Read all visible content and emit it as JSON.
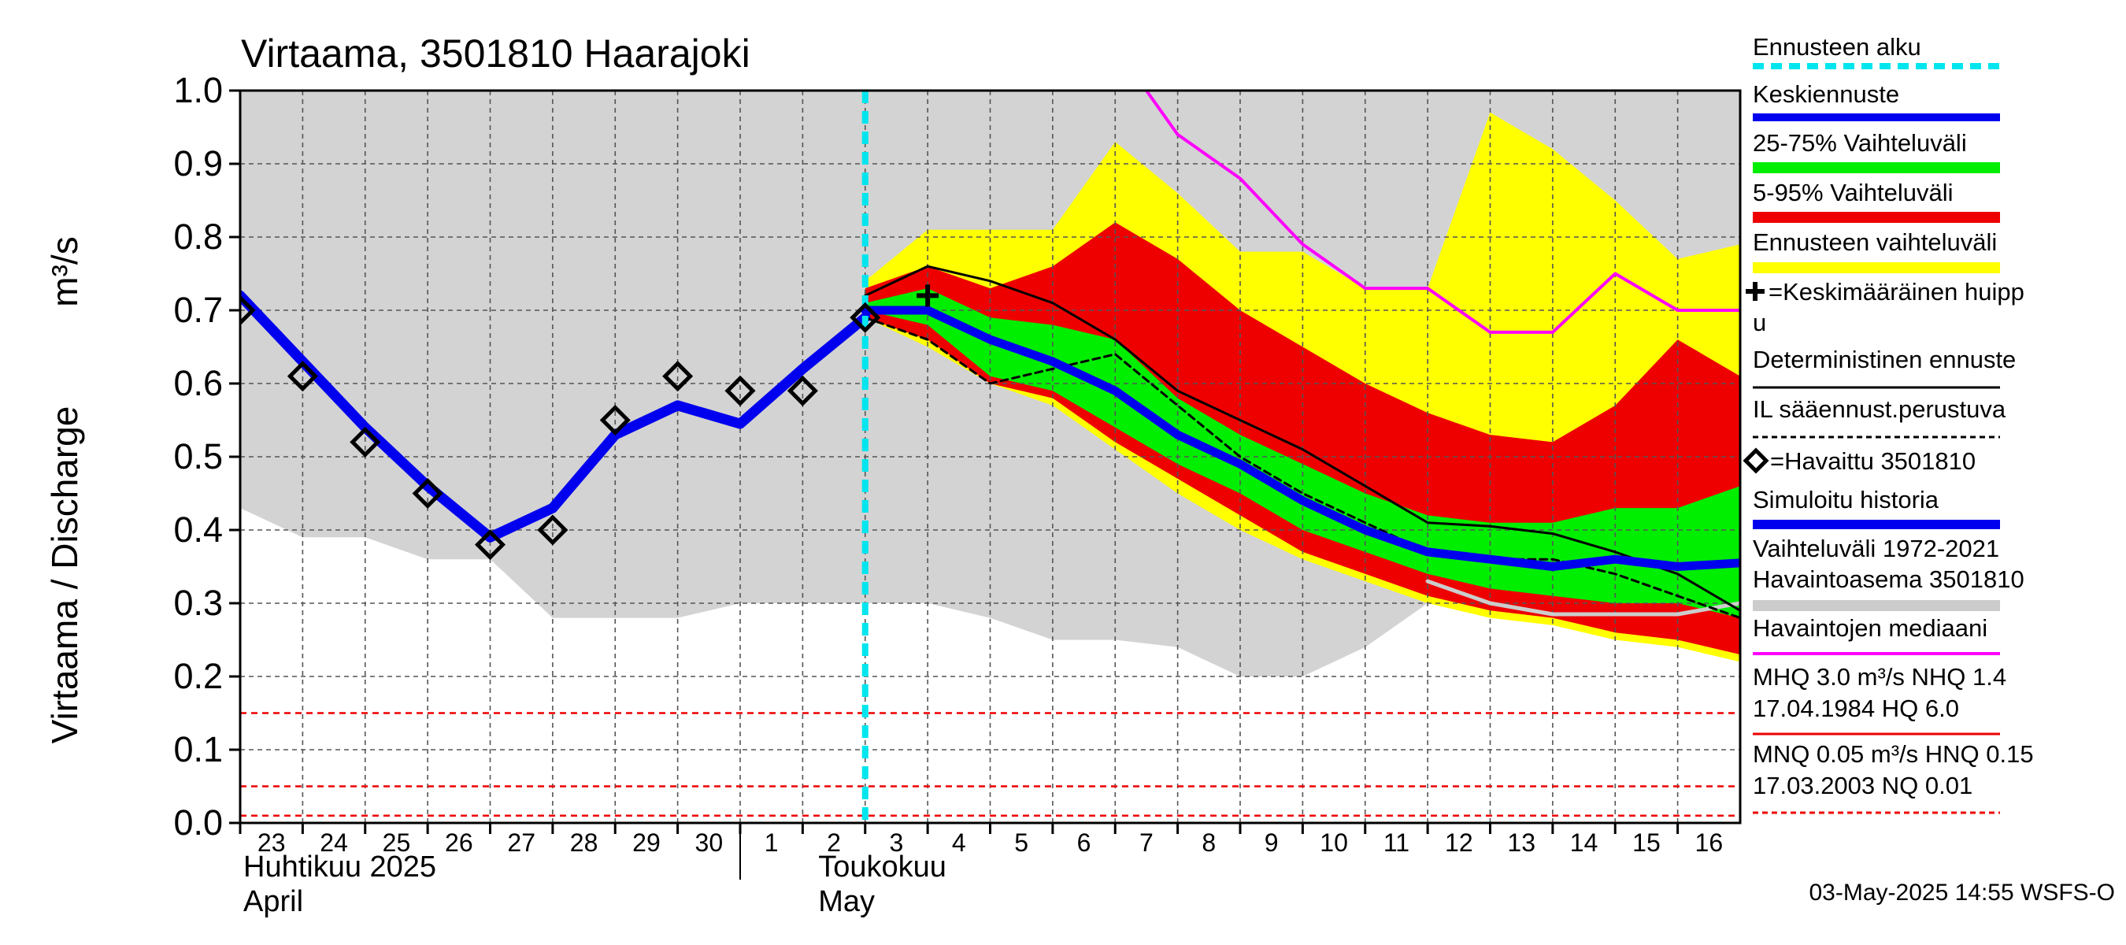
{
  "chart_data": {
    "type": "line",
    "title": "Virtaama, 3501810 Haarajoki",
    "ylabel": "Virtaama / Discharge",
    "yunit": "m³/s",
    "ylim": [
      0.0,
      1.0
    ],
    "yticks": [
      "0.0",
      "0.1",
      "0.2",
      "0.3",
      "0.4",
      "0.5",
      "0.6",
      "0.7",
      "0.8",
      "0.9",
      "1.0"
    ],
    "xlim": [
      0,
      24
    ],
    "x_tick_labels": [
      "23",
      "24",
      "25",
      "26",
      "27",
      "28",
      "29",
      "30",
      "1",
      "2",
      "3",
      "4",
      "5",
      "6",
      "7",
      "8",
      "9",
      "10",
      "11",
      "12",
      "13",
      "14",
      "15",
      "16"
    ],
    "month_labels": [
      {
        "x": 0,
        "fi": "Huhtikuu  2025",
        "en": "April"
      },
      {
        "x": 9.2,
        "fi": "Toukokuu",
        "en": "May"
      }
    ],
    "month_separator_x": 8,
    "forecast_start_x": 10,
    "grid": true,
    "legend_position": "right",
    "historical_band": {
      "name": "Vaihteluväli 1972-2021 Havaintoasema 3501810",
      "x": [
        0,
        1,
        2,
        3,
        4,
        5,
        6,
        7,
        8,
        9,
        10,
        11,
        12,
        13,
        14,
        15,
        16,
        17,
        18,
        19,
        20,
        21,
        22,
        23,
        24
      ],
      "high": [
        1.0,
        1.0,
        1.0,
        1.0,
        1.0,
        1.0,
        1.0,
        1.0,
        1.0,
        1.0,
        1.0,
        1.0,
        1.0,
        1.0,
        1.0,
        1.0,
        1.0,
        1.0,
        1.0,
        1.0,
        1.0,
        1.0,
        1.0,
        1.0,
        1.0
      ],
      "low": [
        0.43,
        0.39,
        0.39,
        0.36,
        0.36,
        0.28,
        0.28,
        0.28,
        0.3,
        0.3,
        0.3,
        0.3,
        0.28,
        0.25,
        0.25,
        0.24,
        0.2,
        0.2,
        0.24,
        0.3,
        0.3,
        0.3,
        0.3,
        0.3,
        0.3
      ]
    },
    "forecast_x": [
      10,
      11,
      12,
      13,
      14,
      15,
      16,
      17,
      18,
      19,
      20,
      21,
      22,
      23,
      24
    ],
    "band_ennuste": {
      "name": "Ennusteen vaihteluväli",
      "high": [
        0.74,
        0.81,
        0.81,
        0.81,
        0.93,
        0.86,
        0.78,
        0.78,
        0.73,
        0.73,
        0.97,
        0.92,
        0.85,
        0.77,
        0.79
      ],
      "low": [
        0.69,
        0.65,
        0.6,
        0.57,
        0.51,
        0.45,
        0.4,
        0.36,
        0.33,
        0.3,
        0.28,
        0.27,
        0.25,
        0.24,
        0.22
      ]
    },
    "band_5_95": {
      "name": "5-95% Vaihteluväli",
      "high": [
        0.73,
        0.76,
        0.73,
        0.76,
        0.82,
        0.77,
        0.7,
        0.65,
        0.6,
        0.56,
        0.53,
        0.52,
        0.57,
        0.66,
        0.61
      ],
      "low": [
        0.69,
        0.66,
        0.6,
        0.58,
        0.52,
        0.47,
        0.42,
        0.37,
        0.34,
        0.31,
        0.29,
        0.28,
        0.26,
        0.25,
        0.23
      ]
    },
    "band_25_75": {
      "name": "25-75% Vaihteluväli",
      "high": [
        0.71,
        0.73,
        0.69,
        0.68,
        0.66,
        0.58,
        0.53,
        0.49,
        0.45,
        0.42,
        0.41,
        0.41,
        0.43,
        0.43,
        0.46
      ],
      "low": [
        0.7,
        0.68,
        0.61,
        0.59,
        0.54,
        0.49,
        0.45,
        0.4,
        0.37,
        0.34,
        0.32,
        0.31,
        0.3,
        0.3,
        0.28
      ]
    },
    "series": [
      {
        "name": "Keskiennuste",
        "color": "#0000ee",
        "x": [
          10,
          11,
          12,
          13,
          14,
          15,
          16,
          17,
          18,
          19,
          20,
          21,
          22,
          23,
          24
        ],
        "values": [
          0.7,
          0.7,
          0.66,
          0.63,
          0.59,
          0.53,
          0.49,
          0.44,
          0.4,
          0.37,
          0.36,
          0.35,
          0.36,
          0.35,
          0.355
        ]
      },
      {
        "name": "Deterministinen ennuste",
        "color": "#000000",
        "x": [
          10,
          11,
          12,
          13,
          14,
          15,
          16,
          17,
          18,
          19,
          20,
          21,
          22,
          23,
          24
        ],
        "values": [
          0.72,
          0.76,
          0.74,
          0.71,
          0.66,
          0.59,
          0.55,
          0.51,
          0.46,
          0.41,
          0.405,
          0.395,
          0.37,
          0.34,
          0.29
        ]
      },
      {
        "name": "IL sääennust.perustuva",
        "color": "#000000",
        "x": [
          10,
          11,
          12,
          13,
          14,
          15,
          16,
          17,
          18,
          19,
          20,
          21,
          22,
          23,
          24
        ],
        "values": [
          0.69,
          0.66,
          0.6,
          0.62,
          0.64,
          0.57,
          0.5,
          0.45,
          0.41,
          0.37,
          0.36,
          0.36,
          0.34,
          0.31,
          0.28
        ]
      },
      {
        "name": "Simuloitu historia",
        "color": "#0000ee",
        "x": [
          0,
          1,
          2,
          3,
          4,
          5,
          6,
          7,
          8,
          9,
          10
        ],
        "values": [
          0.72,
          0.63,
          0.54,
          0.46,
          0.39,
          0.43,
          0.53,
          0.57,
          0.545,
          0.62,
          0.69
        ]
      },
      {
        "name": "Havaintojen mediaani",
        "color": "#ff00ff",
        "x": [
          14.5,
          15,
          16,
          17,
          18,
          19,
          20,
          21,
          22,
          23,
          24
        ],
        "values": [
          1.0,
          0.94,
          0.88,
          0.79,
          0.73,
          0.73,
          0.67,
          0.67,
          0.75,
          0.7,
          0.7
        ]
      },
      {
        "name": "Havaintojen mediaani (low)",
        "color": "#cccccc",
        "x": [
          19,
          20,
          21,
          22,
          23,
          24
        ],
        "values": [
          0.33,
          0.3,
          0.285,
          0.285,
          0.285,
          0.3
        ]
      }
    ],
    "observed": {
      "name": "Havaittu 3501810",
      "x": [
        0,
        1,
        2,
        3,
        4,
        5,
        6,
        7,
        8,
        9,
        10
      ],
      "values": [
        0.7,
        0.61,
        0.52,
        0.45,
        0.38,
        0.4,
        0.55,
        0.61,
        0.59,
        0.59,
        0.69
      ]
    },
    "mean_peak": {
      "name": "Keskimääräinen huippu",
      "x": 11,
      "value": 0.72
    },
    "reference_lines": [
      {
        "name": "HNQ",
        "value": 0.15
      },
      {
        "name": "MNQ",
        "value": 0.05
      },
      {
        "name": "NQ",
        "value": 0.01
      }
    ],
    "legend": [
      {
        "key": "ennusteen_alku",
        "label": "Ennusteen alku",
        "color": "#00e5ee"
      },
      {
        "key": "keskiennuste",
        "label": "Keskiennuste",
        "color": "#0000ee"
      },
      {
        "key": "vaihtelu_25_75",
        "label": "25-75% Vaihteluväli",
        "color": "#00ee00"
      },
      {
        "key": "vaihtelu_5_95",
        "label": "5-95% Vaihteluväli",
        "color": "#ee0000"
      },
      {
        "key": "ennusteen_vaihtelu",
        "label": "Ennusteen vaihteluväli",
        "color": "#ffff00"
      },
      {
        "key": "keskimaarainen_huippu_1",
        "label": "=Keskimääräinen huipp"
      },
      {
        "key": "keskimaarainen_huippu_2",
        "label": "u"
      },
      {
        "key": "deterministinen",
        "label": "Deterministinen ennuste",
        "color": "#000000"
      },
      {
        "key": "il_saaennuste",
        "label": "IL sääennust.perustuva",
        "color": "#000000"
      },
      {
        "key": "havaittu",
        "label": "=Havaittu 3501810"
      },
      {
        "key": "simuloitu",
        "label": "Simuloitu historia",
        "color": "#0000ee"
      },
      {
        "key": "vaihteluvali_1",
        "label": "Vaihteluväli 1972-2021"
      },
      {
        "key": "vaihteluvali_2",
        "label": " Havaintoasema 3501810",
        "color": "#cccccc"
      },
      {
        "key": "mediaani",
        "label": "Havaintojen mediaani",
        "color": "#ff00ff"
      },
      {
        "key": "mhq_1",
        "label": "MHQ  3.0 m³/s NHQ  1.4"
      },
      {
        "key": "mhq_2",
        "label": "17.04.1984 HQ  6.0",
        "color": "#ee0000"
      },
      {
        "key": "mnq_1",
        "label": "MNQ 0.05 m³/s HNQ 0.15"
      },
      {
        "key": "mnq_2",
        "label": "17.03.2003 NQ 0.01",
        "color": "#ee0000"
      }
    ],
    "footer": "03-May-2025 14:55 WSFS-O"
  }
}
